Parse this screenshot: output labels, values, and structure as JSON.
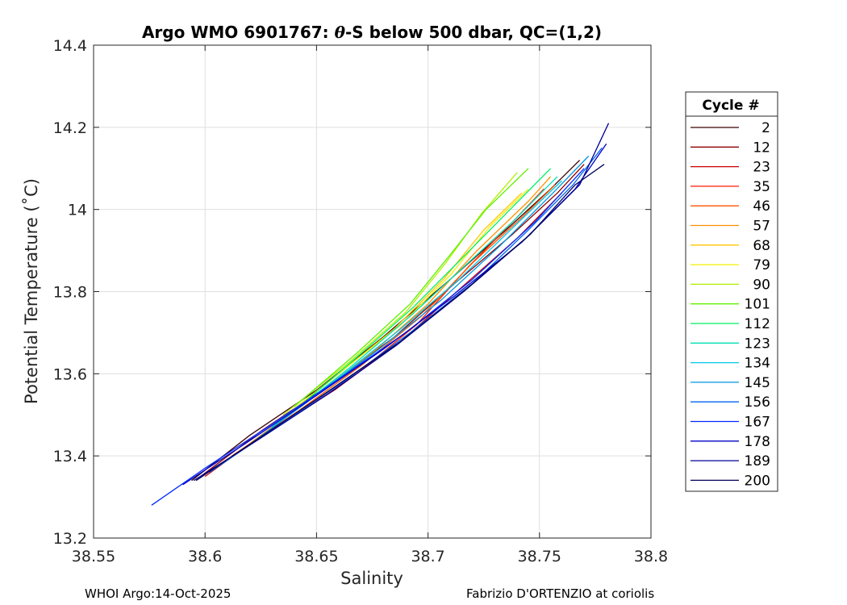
{
  "chart_data": {
    "type": "line",
    "title_prefix": "Argo WMO 6901767: ",
    "title_theta": "θ",
    "title_suffix": "-S below 500 dbar,  QC=(1,2)",
    "xlabel": "Salinity",
    "ylabel": "Potential Temperature (˚C)",
    "xlim": [
      38.55,
      38.8
    ],
    "ylim": [
      13.2,
      14.4
    ],
    "xticks": [
      38.55,
      38.6,
      38.65,
      38.7,
      38.75,
      38.8
    ],
    "xtick_labels": [
      "38.55",
      "38.6",
      "38.65",
      "38.7",
      "38.75",
      "38.8"
    ],
    "yticks": [
      13.2,
      13.4,
      13.6,
      13.8,
      14.0,
      14.2,
      14.4
    ],
    "ytick_labels": [
      "13.2",
      "13.4",
      "13.6",
      "13.8",
      "14",
      "14.2",
      "14.4"
    ],
    "grid": true,
    "legend_placement": "outside-right",
    "legend": {
      "title": "Cycle #",
      "entries": [
        {
          "label": "2",
          "color": "#3a0000"
        },
        {
          "label": "12",
          "color": "#8c0000"
        },
        {
          "label": "23",
          "color": "#c80000"
        },
        {
          "label": "35",
          "color": "#ff1a00"
        },
        {
          "label": "46",
          "color": "#ff5500"
        },
        {
          "label": "57",
          "color": "#ff9000"
        },
        {
          "label": "68",
          "color": "#ffc800"
        },
        {
          "label": "79",
          "color": "#f0f000"
        },
        {
          "label": "90",
          "color": "#b0f000"
        },
        {
          "label": "101",
          "color": "#60f000"
        },
        {
          "label": "112",
          "color": "#00f060"
        },
        {
          "label": "123",
          "color": "#00e0b0"
        },
        {
          "label": "134",
          "color": "#00c8e8"
        },
        {
          "label": "145",
          "color": "#0096e0"
        },
        {
          "label": "156",
          "color": "#0064f0"
        },
        {
          "label": "167",
          "color": "#0028ff"
        },
        {
          "label": "178",
          "color": "#0000c8"
        },
        {
          "label": "189",
          "color": "#000096"
        },
        {
          "label": "200",
          "color": "#00005a"
        }
      ]
    },
    "series": [
      {
        "name": "2",
        "color": "#3a0000",
        "x": [
          38.594,
          38.62,
          38.65,
          38.68,
          38.71,
          38.735,
          38.755,
          38.768
        ],
        "y": [
          13.34,
          13.45,
          13.56,
          13.69,
          13.83,
          13.95,
          14.05,
          14.12
        ]
      },
      {
        "name": "12",
        "color": "#8c0000",
        "x": [
          38.598,
          38.625,
          38.655,
          38.685,
          38.712,
          38.738,
          38.758,
          38.77
        ],
        "y": [
          13.35,
          13.46,
          13.57,
          13.69,
          13.82,
          13.94,
          14.04,
          14.11
        ]
      },
      {
        "name": "23",
        "color": "#c80000",
        "x": [
          38.6,
          38.628,
          38.658,
          38.688,
          38.715,
          38.74,
          38.76
        ],
        "y": [
          13.35,
          13.46,
          13.56,
          13.68,
          13.81,
          13.93,
          14.04
        ]
      },
      {
        "name": "35",
        "color": "#ff1a00",
        "x": [
          38.61,
          38.64,
          38.668,
          38.695,
          38.718,
          38.738,
          38.752
        ],
        "y": [
          13.39,
          13.5,
          13.6,
          13.72,
          13.86,
          13.97,
          14.05
        ]
      },
      {
        "name": "46",
        "color": "#ff5500",
        "x": [
          38.612,
          38.642,
          38.67,
          38.697,
          38.72,
          38.742,
          38.757
        ],
        "y": [
          13.4,
          13.51,
          13.62,
          13.74,
          13.87,
          13.98,
          14.06
        ]
      },
      {
        "name": "57",
        "color": "#ff9000",
        "x": [
          38.62,
          38.65,
          38.677,
          38.7,
          38.722,
          38.745,
          38.755
        ],
        "y": [
          13.43,
          13.55,
          13.66,
          13.77,
          13.9,
          14.02,
          14.08
        ]
      },
      {
        "name": "68",
        "color": "#ffc800",
        "x": [
          38.63,
          38.66,
          38.685,
          38.707,
          38.725,
          38.742
        ],
        "y": [
          13.47,
          13.6,
          13.71,
          13.83,
          13.95,
          14.04
        ]
      },
      {
        "name": "79",
        "color": "#f0f000",
        "x": [
          38.632,
          38.662,
          38.688,
          38.71,
          38.728,
          38.745
        ],
        "y": [
          13.48,
          13.61,
          13.72,
          13.84,
          13.96,
          14.05
        ]
      },
      {
        "name": "90",
        "color": "#b0f000",
        "x": [
          38.635,
          38.665,
          38.69,
          38.708,
          38.724,
          38.74
        ],
        "y": [
          13.5,
          13.63,
          13.75,
          13.87,
          13.99,
          14.09
        ]
      },
      {
        "name": "101",
        "color": "#60f000",
        "x": [
          38.64,
          38.668,
          38.692,
          38.71,
          38.726,
          38.745
        ],
        "y": [
          13.52,
          13.65,
          13.77,
          13.89,
          14.0,
          14.1
        ]
      },
      {
        "name": "112",
        "color": "#00f060",
        "x": [
          38.64,
          38.668,
          38.693,
          38.715,
          38.735,
          38.755
        ],
        "y": [
          13.51,
          13.64,
          13.76,
          13.88,
          13.99,
          14.1
        ]
      },
      {
        "name": "123",
        "color": "#00e0b0",
        "x": [
          38.638,
          38.666,
          38.692,
          38.716,
          38.738,
          38.758
        ],
        "y": [
          13.5,
          13.62,
          13.74,
          13.86,
          13.97,
          14.08
        ]
      },
      {
        "name": "134",
        "color": "#00c8e8",
        "x": [
          38.63,
          38.66,
          38.688,
          38.714,
          38.737,
          38.76
        ],
        "y": [
          13.47,
          13.59,
          13.71,
          13.83,
          13.95,
          14.07
        ]
      },
      {
        "name": "145",
        "color": "#0096e0",
        "x": [
          38.618,
          38.648,
          38.678,
          38.706,
          38.732,
          38.756,
          38.772
        ],
        "y": [
          13.42,
          13.54,
          13.66,
          13.78,
          13.91,
          14.04,
          14.13
        ]
      },
      {
        "name": "156",
        "color": "#0064f0",
        "x": [
          38.602,
          38.632,
          38.662,
          38.692,
          38.72,
          38.745,
          38.765,
          38.778
        ],
        "y": [
          13.36,
          13.47,
          13.58,
          13.7,
          13.82,
          13.95,
          14.06,
          14.15
        ]
      },
      {
        "name": "167",
        "color": "#0028ff",
        "x": [
          38.576,
          38.6,
          38.628,
          38.658,
          38.69,
          38.72,
          38.748,
          38.77
        ],
        "y": [
          13.28,
          13.37,
          13.47,
          13.58,
          13.7,
          13.83,
          13.97,
          14.1
        ]
      },
      {
        "name": "178",
        "color": "#0000c8",
        "x": [
          38.59,
          38.618,
          38.648,
          38.68,
          38.712,
          38.742,
          38.766,
          38.78
        ],
        "y": [
          13.33,
          13.43,
          13.54,
          13.66,
          13.79,
          13.92,
          14.05,
          14.16
        ]
      },
      {
        "name": "189",
        "color": "#000096",
        "x": [
          38.595,
          38.624,
          38.655,
          38.686,
          38.716,
          38.744,
          38.768,
          38.781
        ],
        "y": [
          13.34,
          13.44,
          13.55,
          13.67,
          13.8,
          13.93,
          14.06,
          14.21
        ]
      },
      {
        "name": "200",
        "color": "#00005a",
        "x": [
          38.596,
          38.626,
          38.656,
          38.688,
          38.718,
          38.746,
          38.766,
          38.779
        ],
        "y": [
          13.34,
          13.45,
          13.56,
          13.68,
          13.81,
          13.94,
          14.06,
          14.11
        ]
      }
    ]
  },
  "footer": {
    "left": "WHOI Argo:14-Oct-2025",
    "right": "Fabrizio D'ORTENZIO at coriolis"
  }
}
